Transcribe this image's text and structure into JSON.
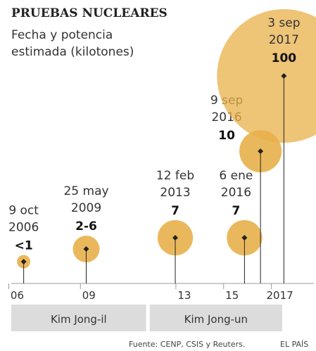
{
  "chart_data": {
    "type": "bubble",
    "title": "PRUEBAS NUCLEARES",
    "subtitle": [
      "Fecha y potencia",
      "estimada (kilotones)"
    ],
    "x": [
      2006.77,
      2009.39,
      2013.12,
      2016.02,
      2016.69,
      2017.67
    ],
    "dates": [
      [
        "9 oct",
        "2006"
      ],
      [
        "25 may",
        "2009"
      ],
      [
        "12 feb",
        "2013"
      ],
      [
        "6 ene",
        "2016"
      ],
      [
        "9 sep",
        "2016"
      ],
      [
        "3 sep",
        "2017"
      ]
    ],
    "values": [
      1,
      4,
      7,
      7,
      10,
      100
    ],
    "value_labels": [
      "<1",
      "2-6",
      "7",
      "7",
      "10",
      "100"
    ],
    "color": "#e8b04a",
    "xlim": [
      2006.25,
      2018.75
    ],
    "xticks": [
      {
        "value": 2006.5,
        "label": "06"
      },
      {
        "value": 2009.5,
        "label": "09"
      },
      {
        "value": 2013.5,
        "label": "13"
      },
      {
        "value": 2015.5,
        "label": "15"
      },
      {
        "value": 2017.5,
        "label": "2017"
      }
    ],
    "eras": [
      {
        "label": "Kim Jong-il",
        "start": 2006.25,
        "end": 2011.9
      },
      {
        "label": "Kim Jong-un",
        "start": 2012.05,
        "end": 2017.6
      }
    ],
    "source": "Fuente: CENP, CSIS y Reuters.",
    "credit": "EL PAÍS"
  }
}
